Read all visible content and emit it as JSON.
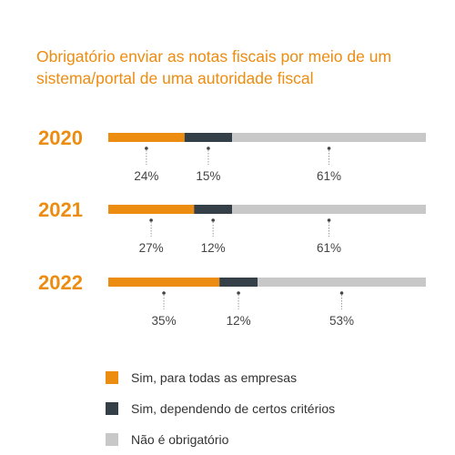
{
  "title_lines": [
    "Obrigatório enviar as notas fiscais por meio de um",
    "sistema/portal de uma autoridade fiscal"
  ],
  "colors": {
    "title": "#ec8c10",
    "series": [
      "#ec8c10",
      "#353f47",
      "#c8c8c8"
    ]
  },
  "chart_data": {
    "type": "bar",
    "orientation": "horizontal",
    "stacked": true,
    "title": "Obrigatório enviar as notas fiscais por meio de um sistema/portal de uma autoridade fiscal",
    "categories": [
      "2020",
      "2021",
      "2022"
    ],
    "series": [
      {
        "name": "Sim, para todas as empresas",
        "values": [
          24,
          27,
          35
        ],
        "labels": [
          "24%",
          "27%",
          "35%"
        ]
      },
      {
        "name": "Sim, dependendo de certos critérios",
        "values": [
          15,
          12,
          12
        ],
        "labels": [
          "15%",
          "12%",
          "12%"
        ]
      },
      {
        "name": "Não é obrigatório",
        "values": [
          61,
          61,
          53
        ],
        "labels": [
          "61%",
          "61%",
          "53%"
        ]
      }
    ],
    "unit": "%",
    "xlim": [
      0,
      100
    ],
    "legend_position": "bottom"
  }
}
